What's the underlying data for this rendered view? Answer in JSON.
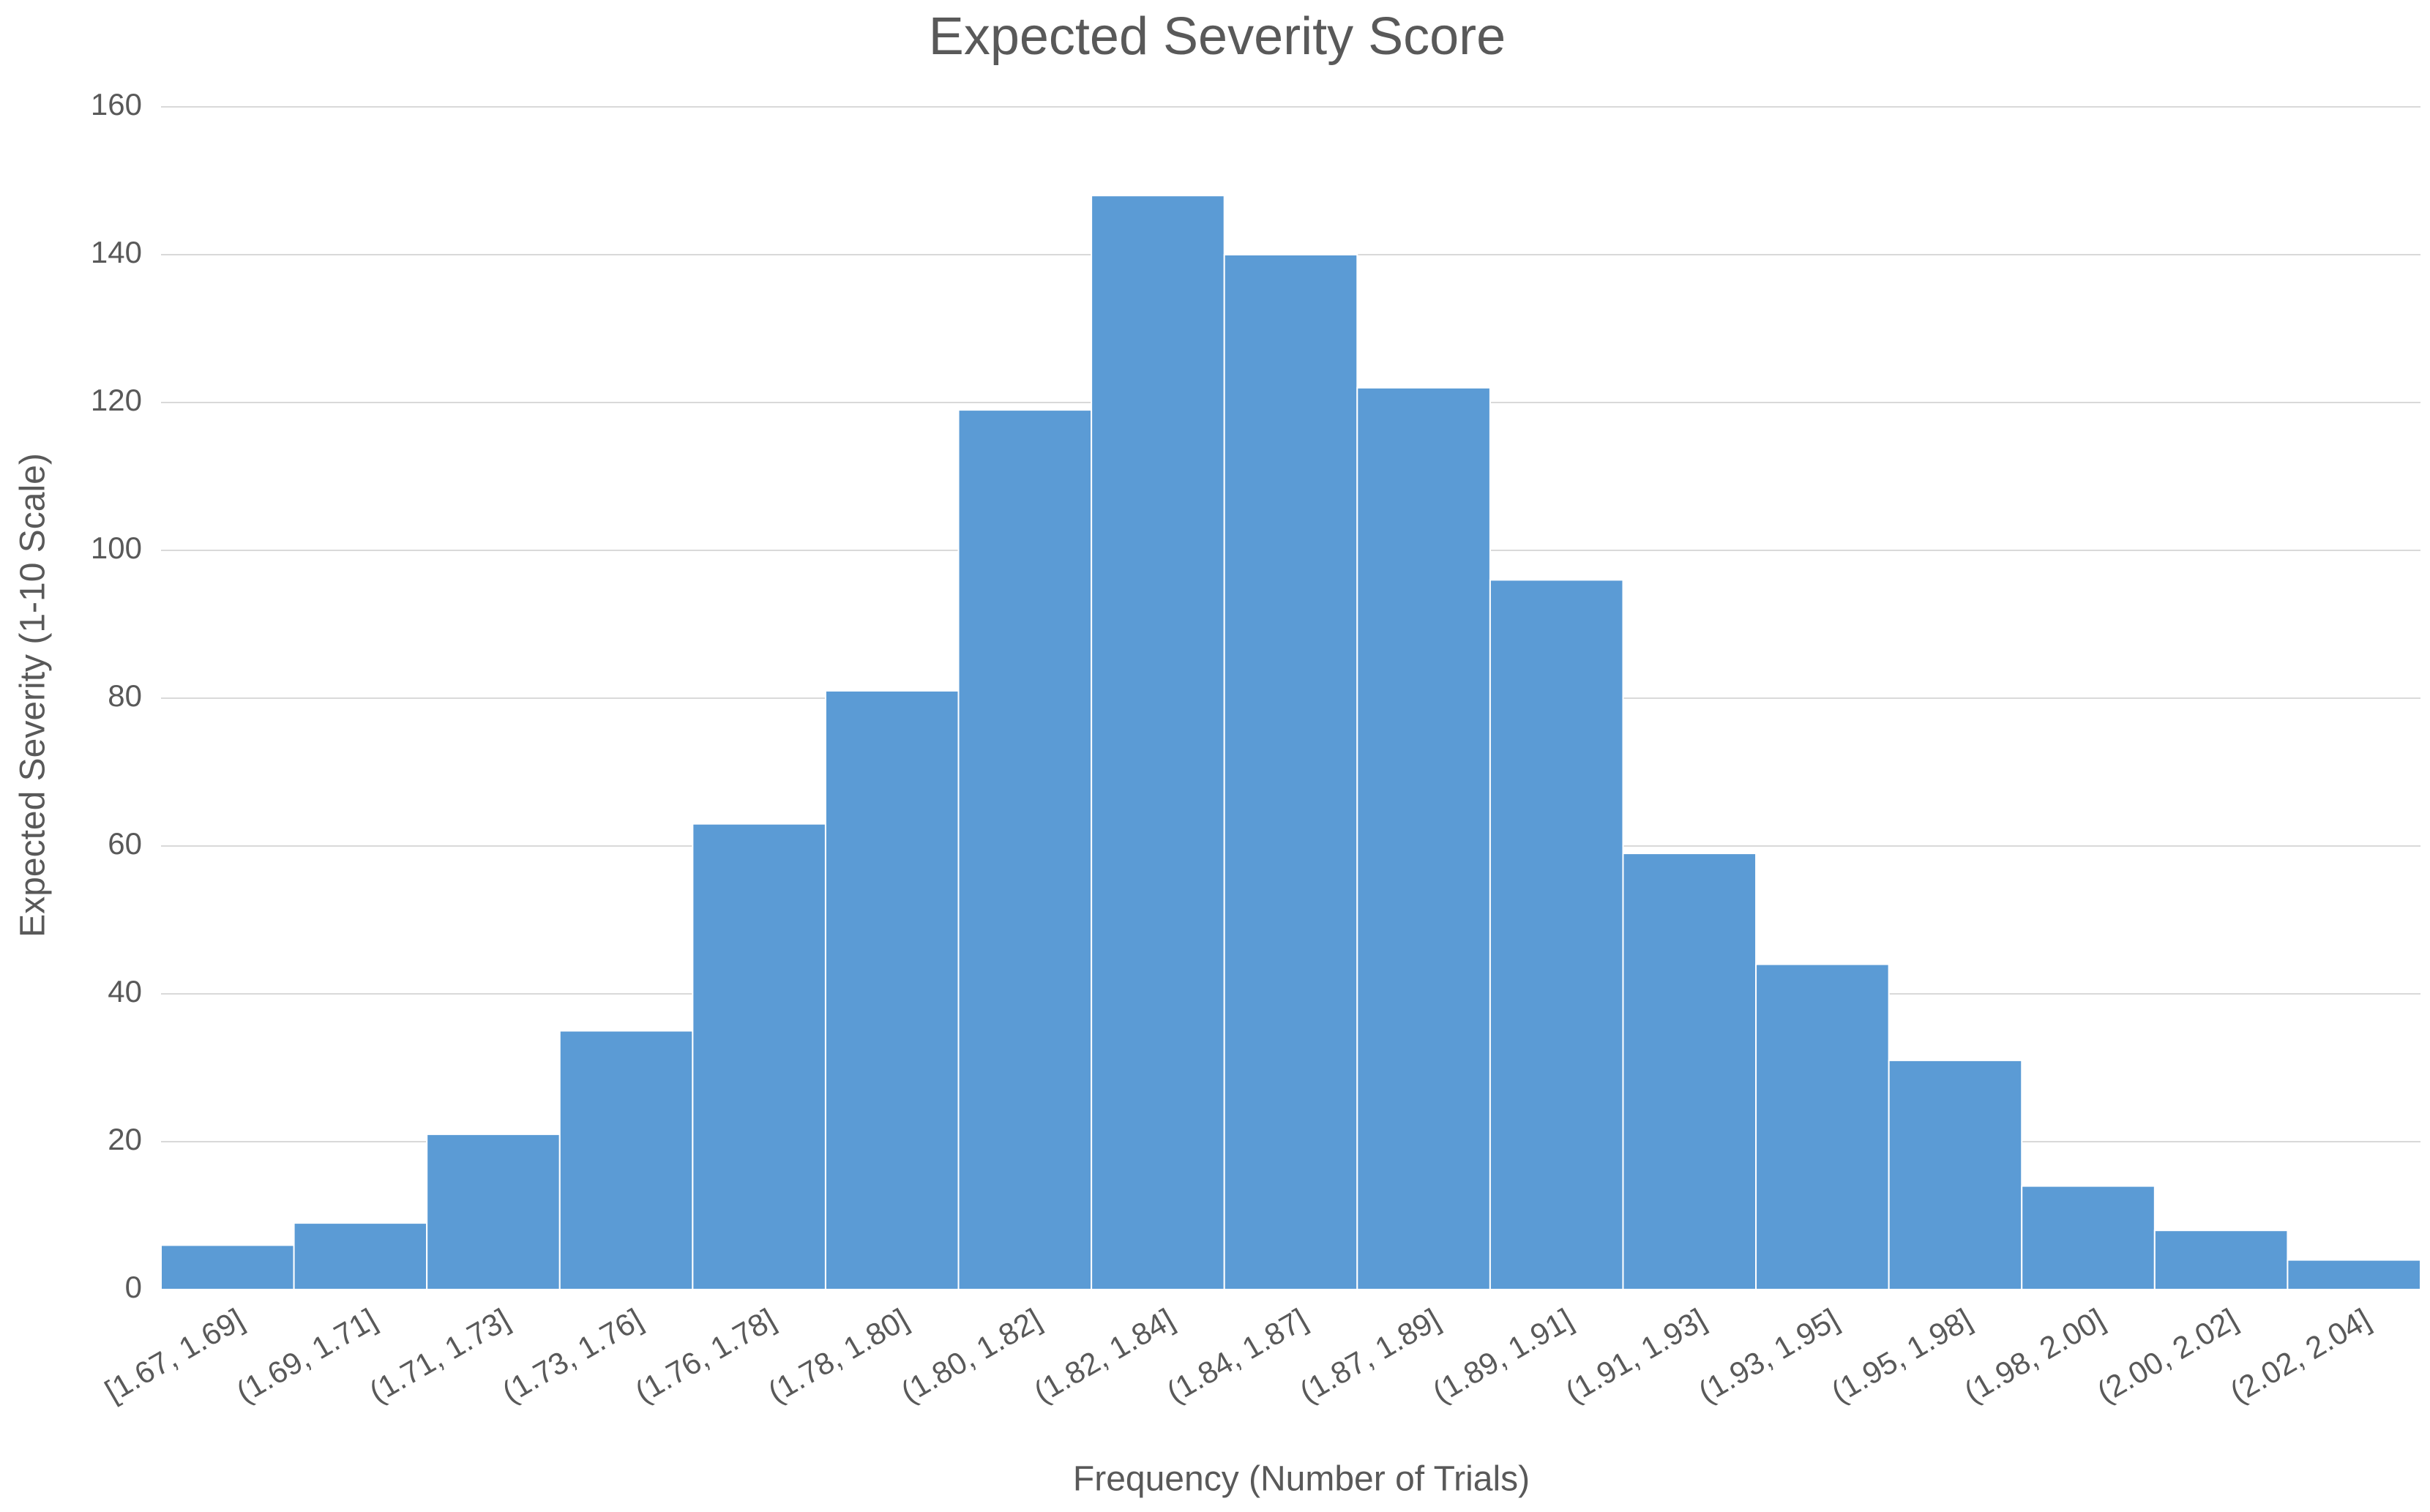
{
  "chart_data": {
    "type": "bar",
    "title": "Expected Severity Score",
    "x_label": "Frequency (Number of Trials)",
    "y_label": "Expected Severity (1-10 Scale)",
    "categories": [
      "[1.67, 1.69]",
      "(1.69, 1.71]",
      "(1.71, 1.73]",
      "(1.73, 1.76]",
      "(1.76, 1.78]",
      "(1.78, 1.80]",
      "(1.80, 1.82]",
      "(1.82, 1.84]",
      "(1.84, 1.87]",
      "(1.87, 1.89]",
      "(1.89, 1.91]",
      "(1.91, 1.93]",
      "(1.93, 1.95]",
      "(1.95, 1.98]",
      "(1.98, 2.00]",
      "(2.00, 2.02]",
      "(2.02, 2.04]"
    ],
    "values": [
      6,
      9,
      21,
      35,
      63,
      81,
      119,
      148,
      140,
      122,
      96,
      59,
      44,
      31,
      14,
      8,
      4
    ],
    "color": "#5b9bd5",
    "ylim": [
      0,
      160
    ],
    "yticks": [
      0,
      20,
      40,
      60,
      80,
      100,
      120,
      140,
      160
    ],
    "grid": true
  }
}
